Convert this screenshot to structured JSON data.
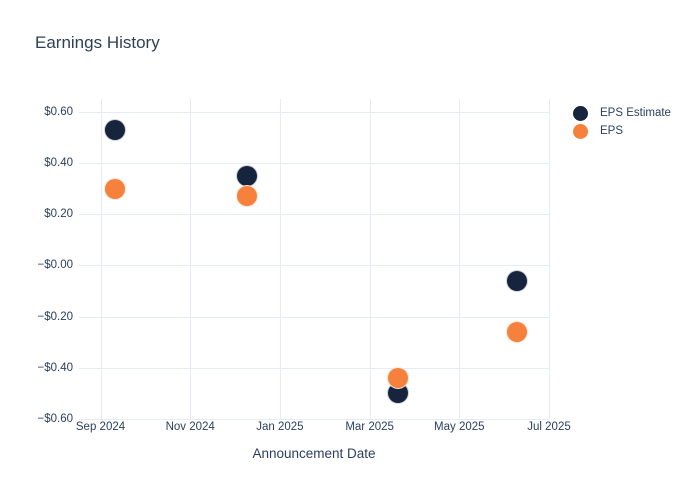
{
  "title": "Earnings History",
  "x_axis": {
    "label": "Announcement Date",
    "ticks": [
      "Sep 2024",
      "Nov 2024",
      "Jan 2025",
      "Mar 2025",
      "May 2025",
      "Jul 2025"
    ]
  },
  "y_axis": {
    "ticks": [
      "$0.60",
      "$0.40",
      "$0.20",
      "−$0.00",
      "−$0.20",
      "−$0.40",
      "−$0.60"
    ]
  },
  "legend": {
    "items": [
      {
        "label": "EPS Estimate",
        "color": "#16243d"
      },
      {
        "label": "EPS",
        "color": "#f5813d"
      }
    ]
  },
  "colors": {
    "eps_estimate": "#16243d",
    "eps": "#f5813d",
    "grid": "#e5ecf6",
    "text": "#2a3f5f",
    "background": "#ffffff"
  },
  "chart_data": {
    "type": "scatter",
    "title": "Earnings History",
    "xlabel": "Announcement Date",
    "ylabel": "",
    "x": [
      "2024-09-11",
      "2024-12-09",
      "2025-03-20",
      "2025-06-10"
    ],
    "series": [
      {
        "name": "EPS Estimate",
        "color": "#16243d",
        "values": [
          0.53,
          0.35,
          -0.5,
          -0.06
        ]
      },
      {
        "name": "EPS",
        "color": "#f5813d",
        "values": [
          0.3,
          0.27,
          -0.44,
          -0.26
        ]
      }
    ],
    "y_tick_values": [
      0.6,
      0.4,
      0.2,
      0.0,
      -0.2,
      -0.4,
      -0.6
    ],
    "ylim": [
      -0.6,
      0.65
    ],
    "xlim_months_from_2024_09": [
      -0.48,
      10.0
    ],
    "grid": true,
    "legend_position": "outside-top-right",
    "marker_size_px": 21
  }
}
